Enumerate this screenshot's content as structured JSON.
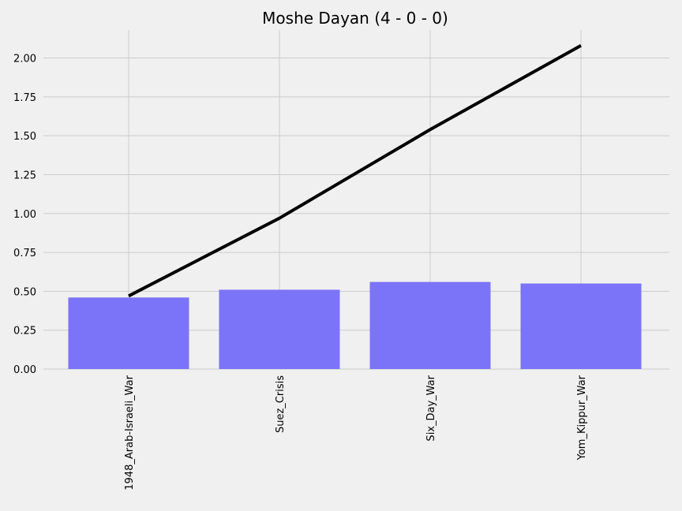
{
  "chart_data": {
    "type": "bar",
    "title": "Moshe Dayan (4 - 0 - 0)",
    "xlabel": "",
    "ylabel": "",
    "categories": [
      "1948_Arab-Israeli_War",
      "Suez_Crisis",
      "Six_Day_War",
      "Yom_Kippur_War"
    ],
    "series": [
      {
        "kind": "bar",
        "values": [
          0.46,
          0.51,
          0.56,
          0.55
        ],
        "color": "#7b74f8"
      },
      {
        "kind": "line",
        "values": [
          0.47,
          0.97,
          1.54,
          2.08
        ],
        "color": "#000000"
      }
    ],
    "ylim": [
      0,
      2.18
    ],
    "yticks": [
      "0.00",
      "0.25",
      "0.50",
      "0.75",
      "1.00",
      "1.25",
      "1.50",
      "1.75",
      "2.00"
    ],
    "grid": true,
    "background": "#f0f0f0"
  }
}
